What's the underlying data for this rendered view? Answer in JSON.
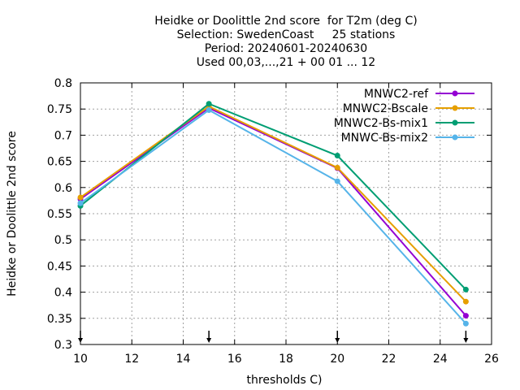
{
  "chart_data": {
    "type": "line",
    "title_lines": [
      "Heidke or Doolittle 2nd score  for T2m (deg C)",
      "Selection: SwedenCoast     25 stations",
      "Period: 20240601-20240630",
      "Used 00,03,...,21 + 00 01 ... 12"
    ],
    "xlabel": "thresholds C)",
    "ylabel": "Heidke or Doolittle 2nd score",
    "xlim": [
      10,
      26
    ],
    "ylim": [
      0.3,
      0.8
    ],
    "xticks": [
      10,
      12,
      14,
      16,
      18,
      20,
      22,
      24,
      26
    ],
    "xtick_labels": [
      "10",
      "12",
      "14",
      "16",
      "18",
      "20",
      "22",
      "24",
      "26"
    ],
    "yticks": [
      0.3,
      0.35,
      0.4,
      0.45,
      0.5,
      0.55,
      0.6,
      0.65,
      0.7,
      0.75,
      0.8
    ],
    "ytick_labels": [
      "0.3",
      "0.35",
      "0.4",
      "0.45",
      "0.5",
      "0.55",
      "0.6",
      "0.65",
      "0.7",
      "0.75",
      "0.8"
    ],
    "grid": true,
    "legend_position": "top-right",
    "x": [
      10,
      15,
      20,
      25
    ],
    "threshold_markers": [
      10,
      15,
      20,
      25
    ],
    "series": [
      {
        "name": "MNWC2-ref",
        "color": "#9400d3",
        "values": [
          0.578,
          0.752,
          0.637,
          0.355
        ]
      },
      {
        "name": "MNWC2-Bscale",
        "color": "#e69f00",
        "values": [
          0.581,
          0.755,
          0.638,
          0.382
        ]
      },
      {
        "name": "MNWC2-Bs-mix1",
        "color": "#009e73",
        "values": [
          0.565,
          0.76,
          0.661,
          0.405
        ]
      },
      {
        "name": "MNWC-Bs-mix2",
        "color": "#56b4e9",
        "values": [
          0.57,
          0.748,
          0.612,
          0.34
        ]
      }
    ]
  }
}
